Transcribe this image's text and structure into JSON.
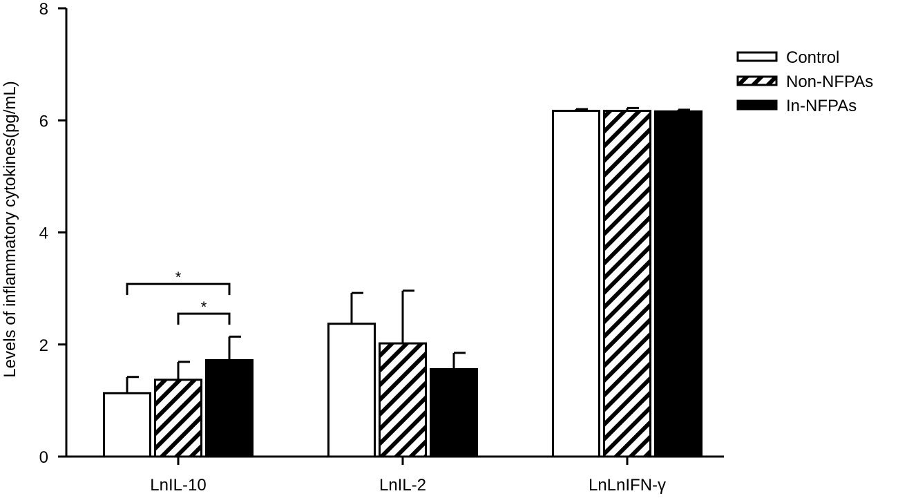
{
  "chart_data": {
    "type": "bar",
    "title": "",
    "xlabel": "",
    "ylabel": "Levels of inflammatory cytokines(pg/mL)",
    "ylim": [
      0,
      8
    ],
    "yticks": [
      0,
      2,
      4,
      6,
      8
    ],
    "categories": [
      "LnIL-10",
      "LnIL-2",
      "LnLnIFN-γ"
    ],
    "series": [
      {
        "name": "Control",
        "fill": "white",
        "values": [
          1.13,
          2.37,
          6.17
        ],
        "errors": [
          0.29,
          0.55,
          0.03
        ]
      },
      {
        "name": "Non-NFPAs",
        "fill": "hatched",
        "values": [
          1.37,
          2.02,
          6.17
        ],
        "errors": [
          0.32,
          0.94,
          0.05
        ]
      },
      {
        "name": "In-NFPAs",
        "fill": "black",
        "values": [
          1.72,
          1.56,
          6.16
        ],
        "errors": [
          0.42,
          0.29,
          0.03
        ]
      }
    ],
    "significance": [
      {
        "category": "LnIL-10",
        "from_series": 0,
        "to_series": 2,
        "y": 3.08,
        "label": "*"
      },
      {
        "category": "LnIL-10",
        "from_series": 1,
        "to_series": 2,
        "y": 2.55,
        "label": "*"
      }
    ],
    "legend_position": "top-right",
    "grid": false,
    "colors": {
      "axis": "#000000",
      "bar_stroke": "#000000",
      "solid": "#000000",
      "empty": "#ffffff"
    }
  }
}
